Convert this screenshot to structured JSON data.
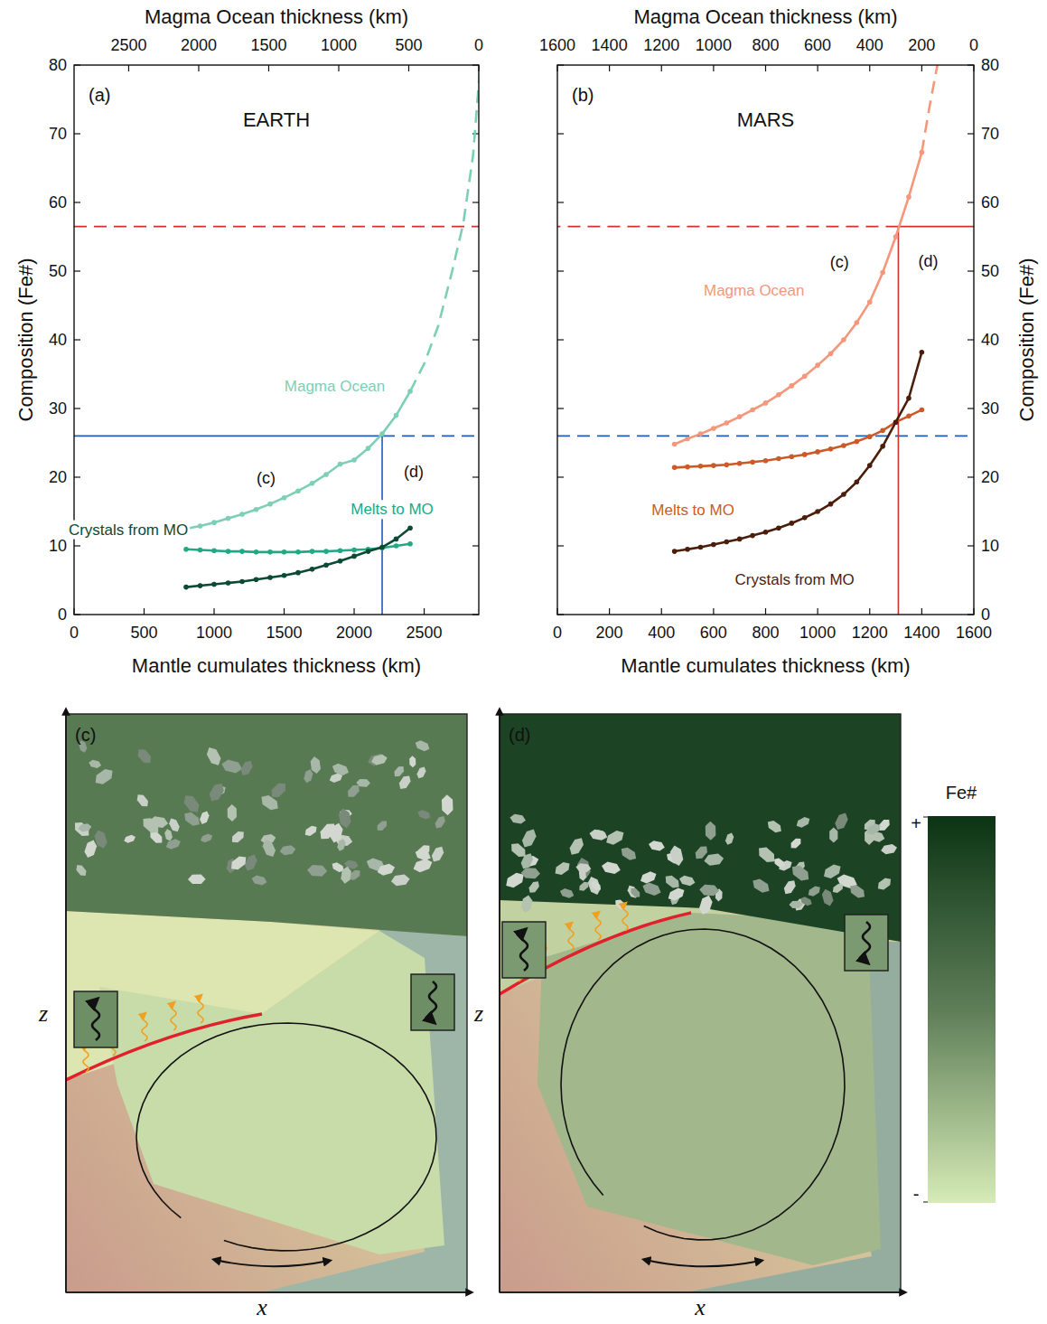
{
  "chart_data": [
    {
      "type": "line",
      "title": "EARTH",
      "panel_label": "(a)",
      "x_label": "Mantle cumulates thickness (km)",
      "x2_label": "Magma Ocean thickness (km)",
      "y_label": "Composition (Fe#)",
      "xlim": [
        0,
        2890
      ],
      "xticks": [
        0,
        500,
        1000,
        1500,
        2000,
        2500
      ],
      "x2lim": [
        2890,
        0
      ],
      "x2ticks": [
        2500,
        2000,
        1500,
        1000,
        500,
        0
      ],
      "ylim": [
        0,
        80
      ],
      "yticks": [
        0,
        10,
        20,
        30,
        40,
        50,
        60,
        70,
        80
      ],
      "grid": false,
      "series": [
        {
          "name": "Magma Ocean",
          "color": "#7dcfb6",
          "marker": "circle",
          "line_style": "solid",
          "x": [
            800,
            900,
            1000,
            1100,
            1200,
            1300,
            1400,
            1500,
            1600,
            1700,
            1800,
            1900,
            2000,
            2100,
            2200,
            2300,
            2400
          ],
          "values": [
            12.5,
            12.9,
            13.4,
            14.0,
            14.6,
            15.3,
            16.1,
            17.0,
            18.0,
            19.1,
            20.4,
            21.9,
            22.5,
            24.2,
            26.3,
            29.0,
            32.5
          ]
        },
        {
          "color": "#7dcfb6",
          "marker": "none",
          "line_style": "dashed",
          "x": [
            2400,
            2500,
            2600,
            2700,
            2780,
            2850,
            2900
          ],
          "values": [
            32.5,
            36.5,
            42.0,
            50.0,
            57.0,
            67.0,
            80.0
          ]
        },
        {
          "name": "Melts to MO",
          "color": "#22a884",
          "marker": "circle",
          "line_style": "solid",
          "x": [
            800,
            900,
            1000,
            1100,
            1200,
            1300,
            1400,
            1500,
            1600,
            1700,
            1800,
            1900,
            2000,
            2100,
            2200,
            2300,
            2400
          ],
          "values": [
            9.5,
            9.4,
            9.3,
            9.2,
            9.2,
            9.1,
            9.1,
            9.1,
            9.1,
            9.2,
            9.2,
            9.3,
            9.4,
            9.5,
            9.7,
            10.0,
            10.3
          ]
        },
        {
          "name": "Crystals from MO",
          "color": "#0b4a34",
          "marker": "circle",
          "line_style": "solid",
          "x": [
            800,
            900,
            1000,
            1100,
            1200,
            1300,
            1400,
            1500,
            1600,
            1700,
            1800,
            1900,
            2000,
            2100,
            2200,
            2300,
            2400
          ],
          "values": [
            4.0,
            4.2,
            4.4,
            4.6,
            4.8,
            5.1,
            5.4,
            5.7,
            6.1,
            6.6,
            7.2,
            7.8,
            8.5,
            9.2,
            9.8,
            11.0,
            12.6
          ]
        }
      ],
      "hlines": [
        {
          "value": 56.5,
          "color": "#d0312d",
          "line_style": "dashed"
        }
      ],
      "guide": {
        "x": 2200,
        "y": 26,
        "color": "#1f5fb0",
        "side": "left"
      },
      "annotations": [
        "(c)",
        "(d)"
      ]
    },
    {
      "type": "line",
      "title": "MARS",
      "panel_label": "(b)",
      "x_label": "Mantle cumulates thickness (km)",
      "x2_label": "Magma Ocean thickness (km)",
      "y_label": "Composition (Fe#)",
      "xlim": [
        0,
        1600
      ],
      "xticks": [
        0,
        200,
        400,
        600,
        800,
        1000,
        1200,
        1400,
        1600
      ],
      "x2lim": [
        1600,
        0
      ],
      "x2ticks": [
        1600,
        1400,
        1200,
        1000,
        800,
        600,
        400,
        200,
        0
      ],
      "ylim": [
        0,
        80
      ],
      "yticks": [
        0,
        10,
        20,
        30,
        40,
        50,
        60,
        70,
        80
      ],
      "grid": false,
      "series": [
        {
          "name": "Magma Ocean",
          "color": "#f4977a",
          "marker": "circle",
          "line_style": "solid",
          "x": [
            450,
            500,
            550,
            600,
            650,
            700,
            750,
            800,
            850,
            900,
            950,
            1000,
            1050,
            1100,
            1150,
            1200,
            1250,
            1300,
            1350,
            1400
          ],
          "values": [
            24.8,
            25.6,
            26.3,
            27.1,
            27.9,
            28.8,
            29.8,
            30.8,
            32.0,
            33.3,
            34.7,
            36.3,
            38.0,
            40.0,
            42.5,
            45.5,
            49.8,
            55.0,
            60.8,
            67.3
          ]
        },
        {
          "color": "#f4977a",
          "marker": "none",
          "line_style": "dashed",
          "x": [
            1400,
            1430,
            1460
          ],
          "values": [
            67.3,
            74.0,
            80.0
          ]
        },
        {
          "name": "Melts to MO",
          "color": "#cc5a28",
          "marker": "circle",
          "line_style": "solid",
          "x": [
            450,
            500,
            550,
            600,
            650,
            700,
            750,
            800,
            850,
            900,
            950,
            1000,
            1050,
            1100,
            1150,
            1200,
            1250,
            1300,
            1350,
            1400
          ],
          "values": [
            21.4,
            21.5,
            21.6,
            21.7,
            21.8,
            22.0,
            22.2,
            22.4,
            22.7,
            23.0,
            23.3,
            23.7,
            24.1,
            24.6,
            25.2,
            25.9,
            26.8,
            28.0,
            28.9,
            29.8
          ]
        },
        {
          "name": "Crystals from MO",
          "color": "#4b1e0c",
          "marker": "circle",
          "line_style": "solid",
          "x": [
            450,
            500,
            550,
            600,
            650,
            700,
            750,
            800,
            850,
            900,
            950,
            1000,
            1050,
            1100,
            1150,
            1200,
            1250,
            1300,
            1350,
            1400
          ],
          "values": [
            9.2,
            9.5,
            9.8,
            10.2,
            10.6,
            11.0,
            11.5,
            12.0,
            12.6,
            13.3,
            14.1,
            15.0,
            16.1,
            17.5,
            19.3,
            21.7,
            24.5,
            28.0,
            31.5,
            38.2
          ]
        }
      ],
      "hlines": [
        {
          "value": 26,
          "color": "#1f5fb0",
          "line_style": "dashed"
        }
      ],
      "guide": {
        "x": 1310,
        "y": 56.5,
        "color": "#d0312d",
        "side": "right"
      },
      "annotations": [
        "(c)",
        "(d)"
      ]
    }
  ],
  "diagrams": [
    {
      "label": "(c)",
      "z_label": "z",
      "x_label": "x"
    },
    {
      "label": "(d)",
      "z_label": "z",
      "x_label": "x"
    }
  ],
  "colorbar": {
    "title": "Fe#",
    "max_label": "+",
    "min_label": "-"
  }
}
